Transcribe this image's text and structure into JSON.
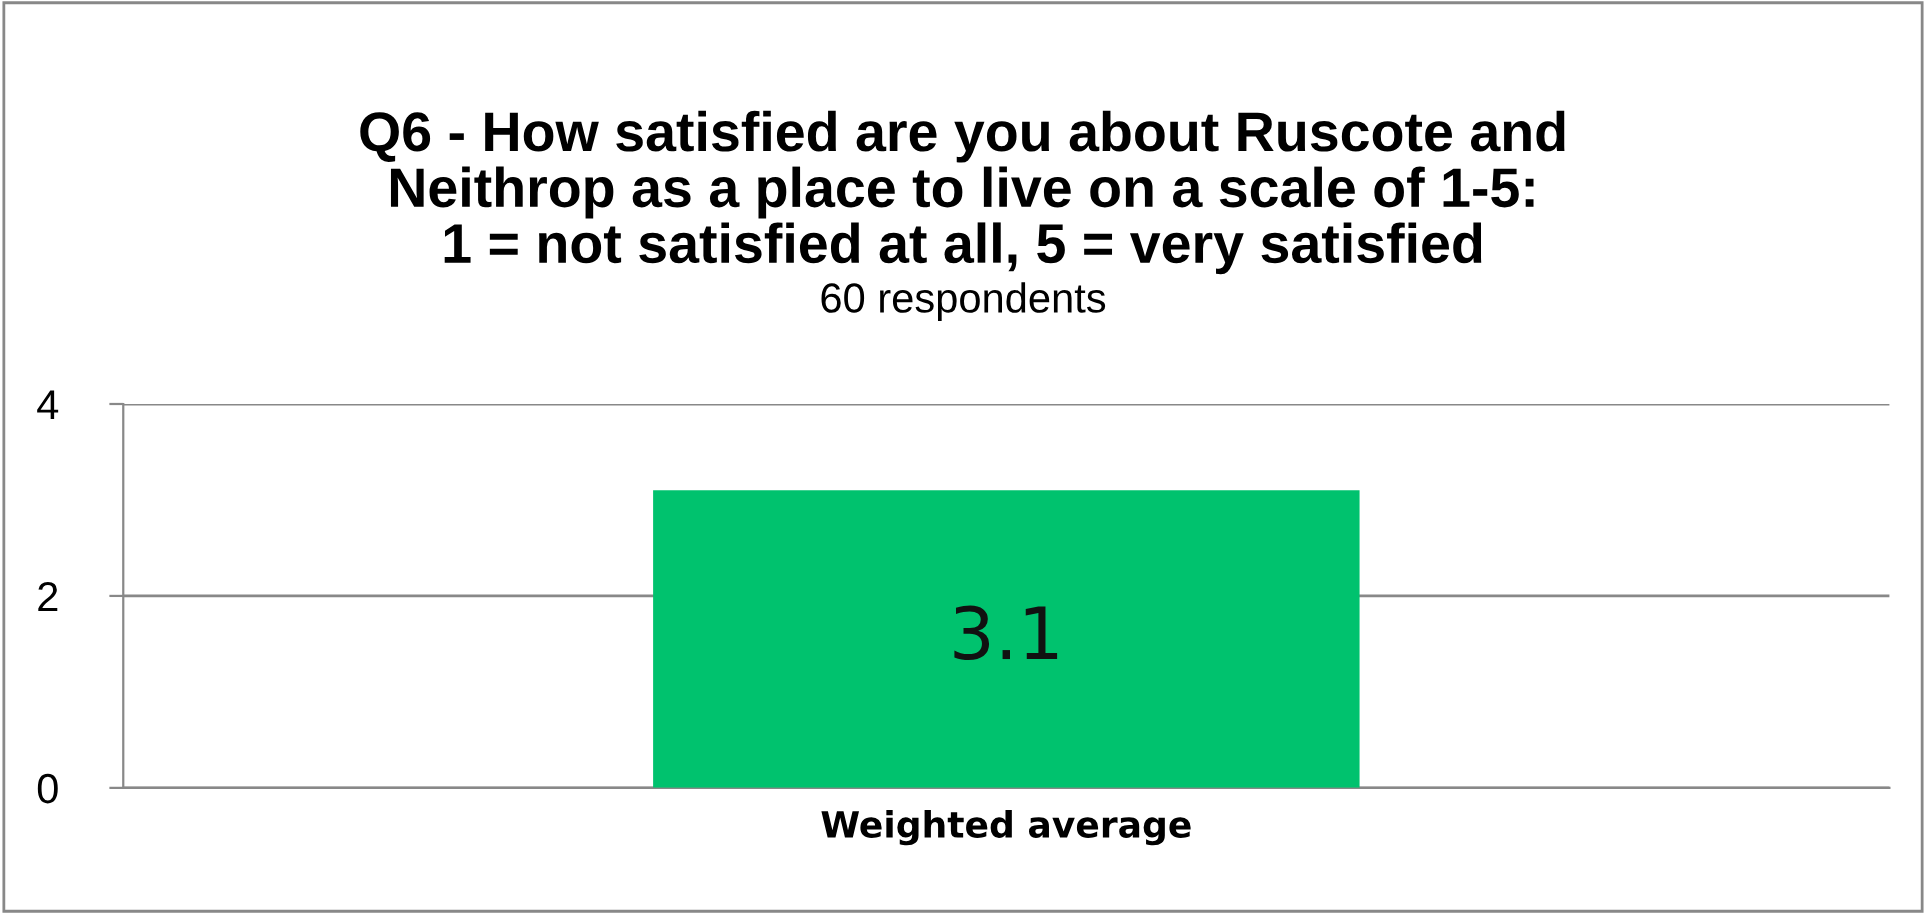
{
  "chart_data": {
    "type": "bar",
    "title": "Q6 - How satisfied are you about Ruscote and\nNeithrop as a place to live on a scale of 1-5:\n1 = not satisfied at all, 5 = very satisfied",
    "subtitle": "60 respondents",
    "categories": [
      "Weighted average"
    ],
    "values": [
      3.1
    ],
    "color": "#00c26e",
    "data_labels": true,
    "ylim": [
      0,
      4
    ],
    "yticks": [
      0,
      2,
      4
    ],
    "grid": "y"
  }
}
